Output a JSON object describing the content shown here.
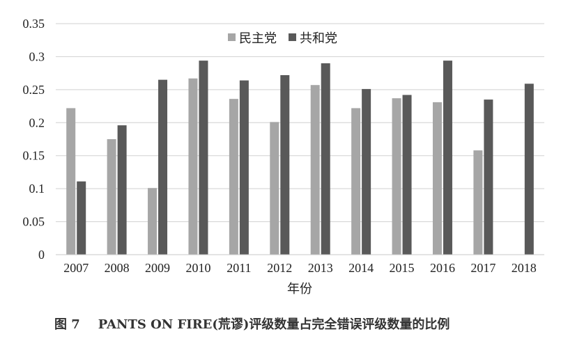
{
  "chart_data": {
    "type": "bar",
    "categories": [
      "2007",
      "2008",
      "2009",
      "2010",
      "2011",
      "2012",
      "2013",
      "2014",
      "2015",
      "2016",
      "2017",
      "2018"
    ],
    "series": [
      {
        "name": "民主党",
        "color": "#a6a6a6",
        "values": [
          0.222,
          0.175,
          0.101,
          0.267,
          0.236,
          0.201,
          0.257,
          0.222,
          0.237,
          0.231,
          0.158,
          null
        ]
      },
      {
        "name": "共和党",
        "color": "#595959",
        "values": [
          0.111,
          0.196,
          0.265,
          0.294,
          0.264,
          0.272,
          0.29,
          0.251,
          0.242,
          0.294,
          0.235,
          0.259
        ]
      }
    ],
    "ylim": [
      0,
      0.35
    ],
    "yticks": [
      "0",
      "0.05",
      "0.1",
      "0.15",
      "0.2",
      "0.25",
      "0.3",
      "0.35"
    ],
    "xlabel": "年份",
    "ylabel": "",
    "grid": true,
    "legend_position": "top-center"
  },
  "caption": {
    "figure_number": "图 7",
    "text": "PANTS ON FIRE(荒谬)评级数量占完全错误评级数量的比例"
  }
}
